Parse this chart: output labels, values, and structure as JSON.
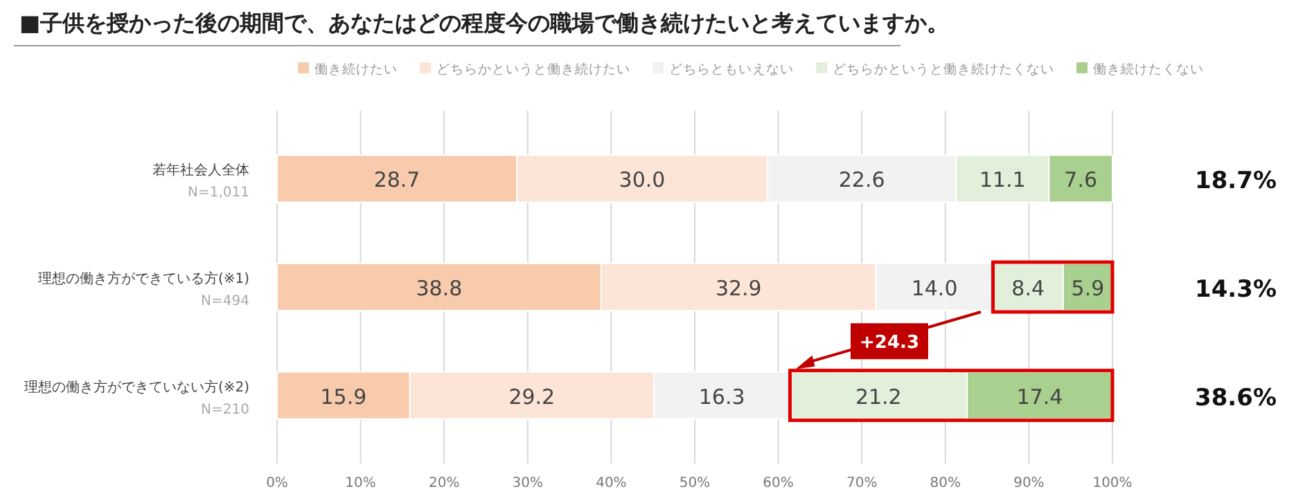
{
  "chart_data": {
    "type": "bar",
    "orientation": "horizontal",
    "stacked": true,
    "title": "■子供を授かった後の期間で、あなたはどの程度今の職場で働き続けたいと考えていますか。",
    "categories": [
      "若年社会人全体\nN=1,011",
      "理想の働き方ができている方(※1)\nN=494",
      "理想の働き方ができていない方(※2)\nN=210"
    ],
    "series": [
      {
        "name": "働き続けたい",
        "color": "#f8cbad",
        "values": [
          28.7,
          38.8,
          15.9
        ],
        "value_labels": [
          "28.7",
          "38.8",
          "15.9"
        ]
      },
      {
        "name": "どちらかというと働き続けたい",
        "color": "#fce4d6",
        "values": [
          30.0,
          32.9,
          29.2
        ],
        "value_labels": [
          "30.0",
          "32.9",
          "29.2"
        ]
      },
      {
        "name": "どちらともいえない",
        "color": "#f2f2f2",
        "values": [
          22.6,
          14.0,
          16.3
        ],
        "value_labels": [
          "22.6",
          "14.0",
          "16.3"
        ]
      },
      {
        "name": "どちらかというと働き続けたくない",
        "color": "#e2efda",
        "values": [
          11.1,
          8.4,
          21.2
        ],
        "value_labels": [
          "11.1",
          "8.4",
          "21.2"
        ]
      },
      {
        "name": "働き続けたくない",
        "color": "#a9d08e",
        "values": [
          7.6,
          5.9,
          17.4
        ],
        "value_labels": [
          "7.6",
          "5.9",
          "17.4"
        ]
      }
    ],
    "xlim": [
      0,
      100
    ],
    "xticks": [
      {
        "value": 0,
        "label": "0%"
      },
      {
        "value": 10,
        "label": "10%"
      },
      {
        "value": 20,
        "label": "20%"
      },
      {
        "value": 30,
        "label": "30%"
      },
      {
        "value": 40,
        "label": "40%"
      },
      {
        "value": 50,
        "label": "50%"
      },
      {
        "value": 60,
        "label": "60%"
      },
      {
        "value": 70,
        "label": "70%"
      },
      {
        "value": 80,
        "label": "80%"
      },
      {
        "value": 90,
        "label": "90%"
      },
      {
        "value": 100,
        "label": "100%"
      }
    ],
    "grid": "x",
    "legend": "top",
    "annotations": [
      "18.7%",
      "14.3%",
      "38.6%",
      "+24.3"
    ]
  }
}
